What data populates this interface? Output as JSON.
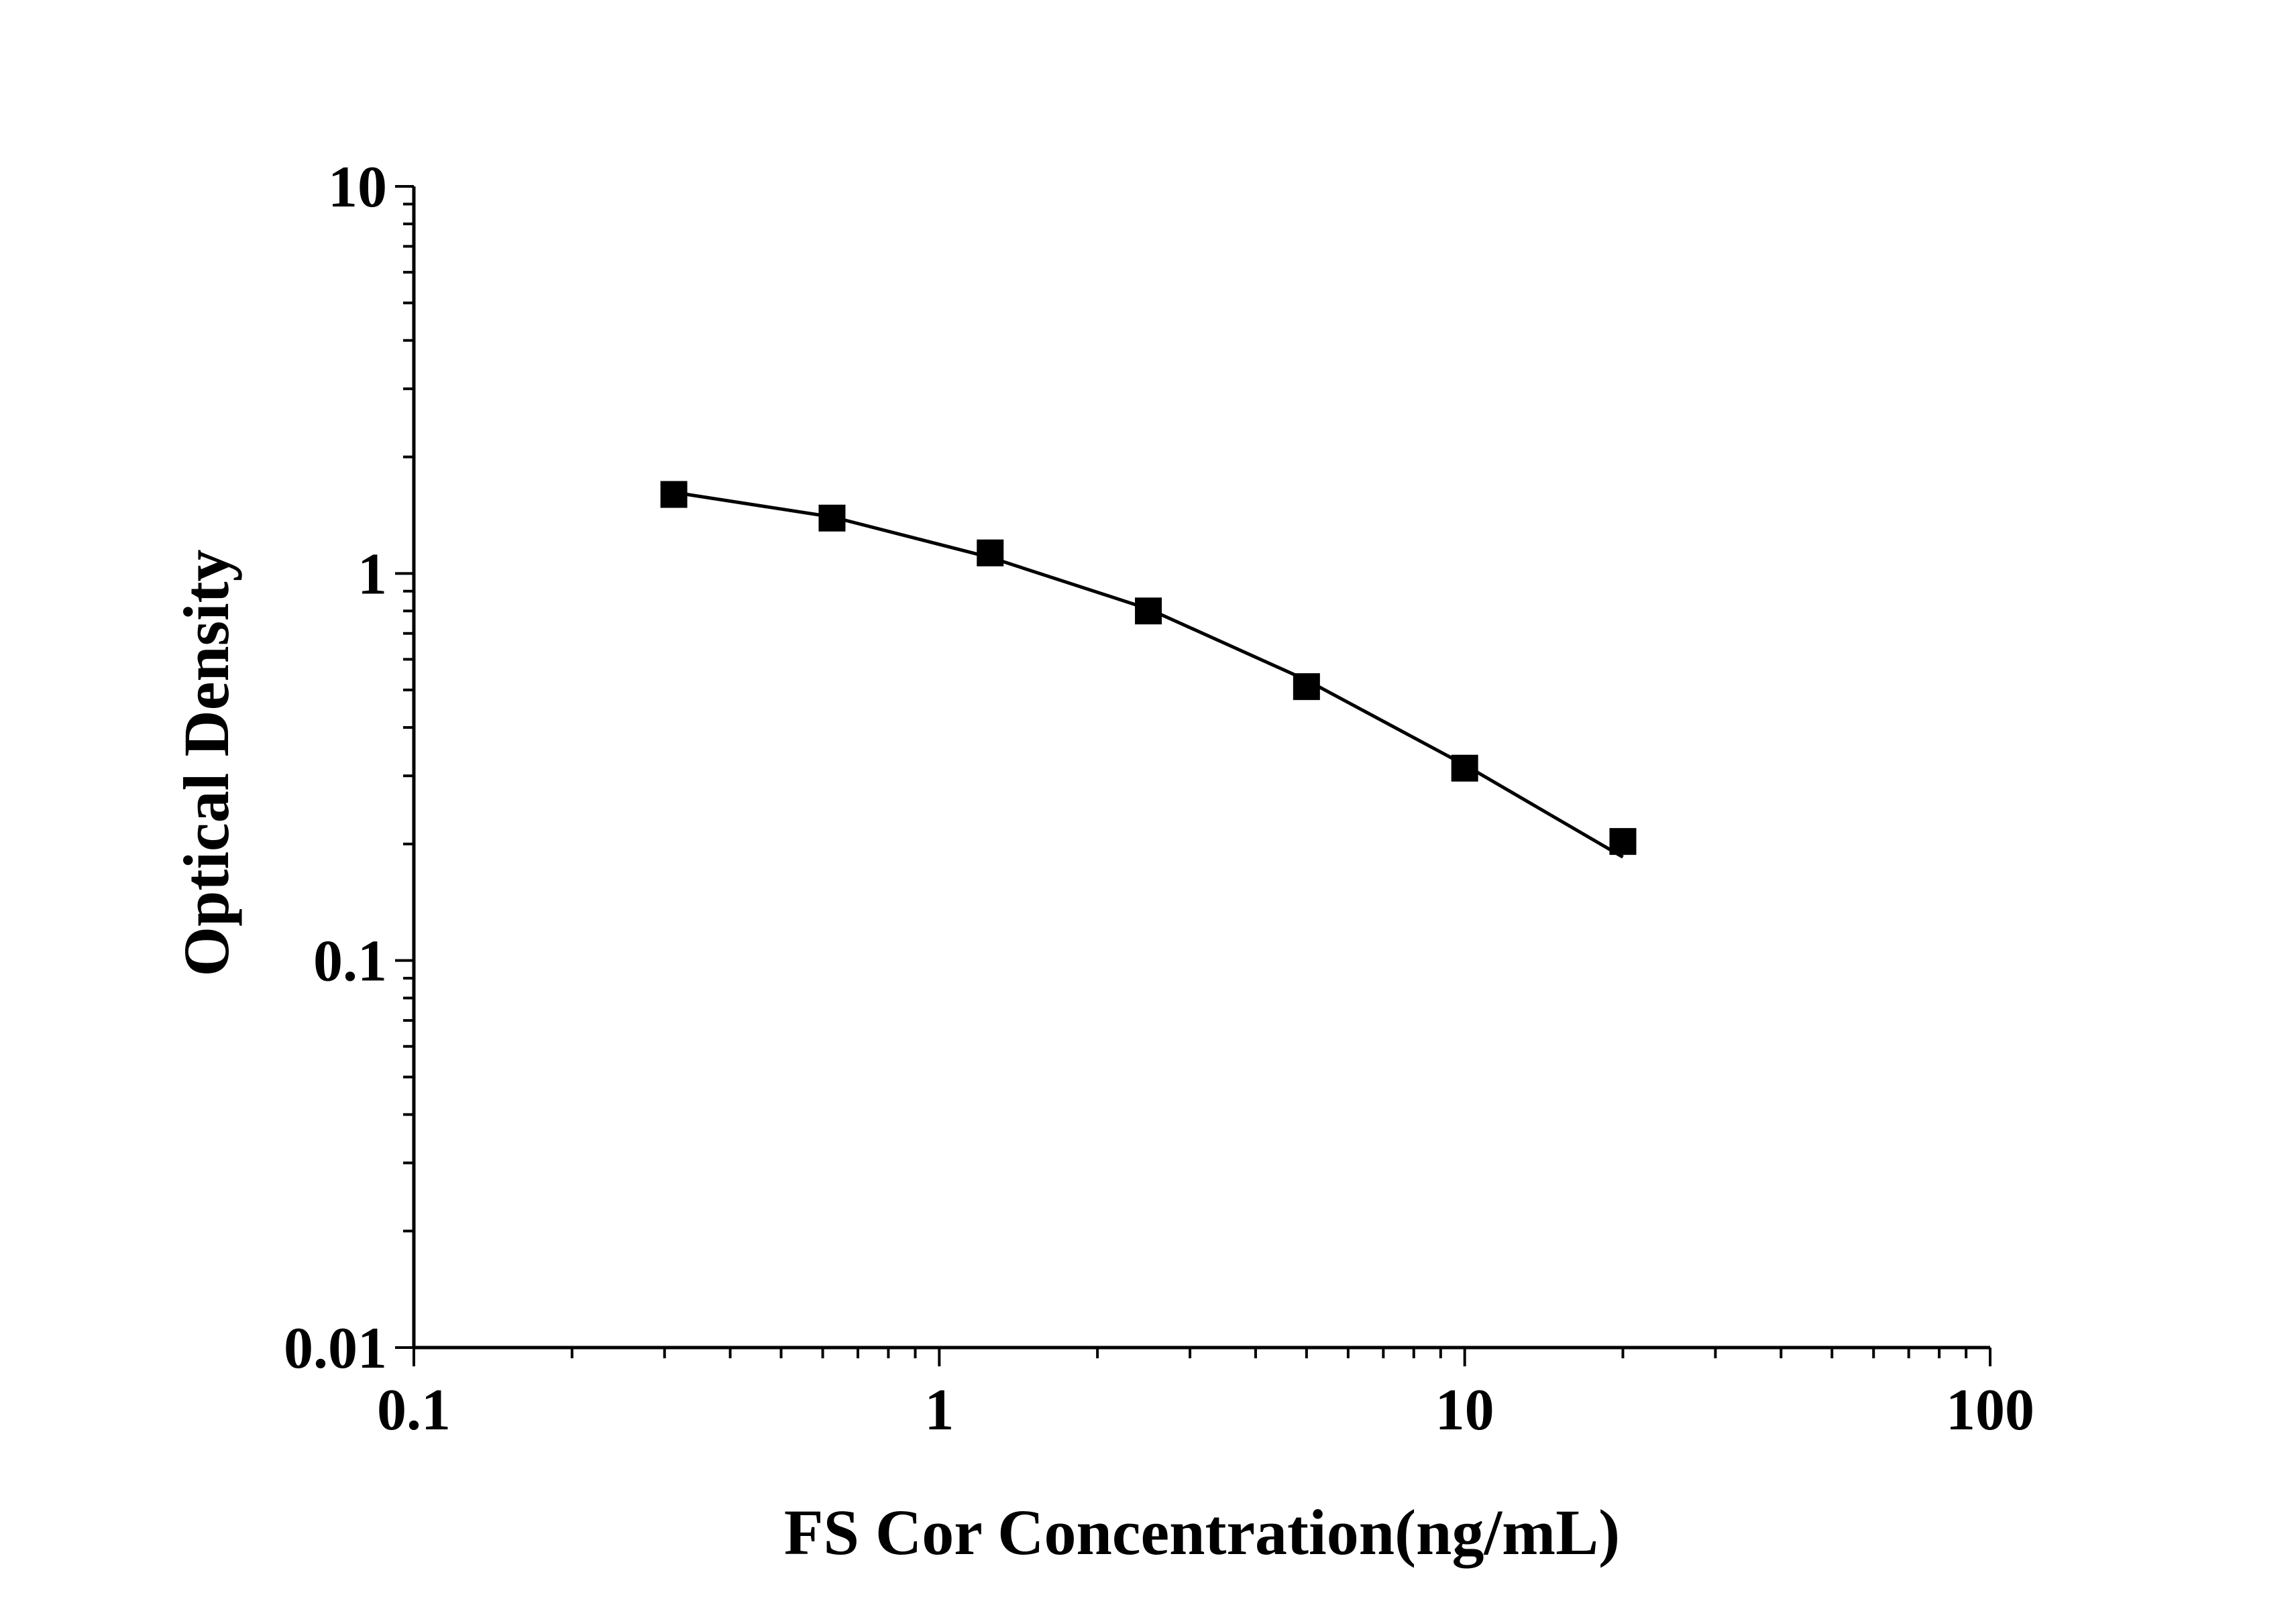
{
  "chart_data": {
    "type": "scatter",
    "title": "",
    "xlabel": "FS Cor Concentration(ng/mL)",
    "ylabel": "Optical Density",
    "x_scale": "log",
    "y_scale": "log",
    "xlim": [
      0.1,
      100
    ],
    "ylim": [
      0.01,
      10
    ],
    "x_ticks": [
      "0.1",
      "1",
      "10",
      "100"
    ],
    "y_ticks": [
      "0.01",
      "0.1",
      "1",
      "10"
    ],
    "grid": false,
    "legend": "none",
    "series": [
      {
        "marker": "square",
        "color": "#000000",
        "x": [
          0.3125,
          0.625,
          1.25,
          2.5,
          5,
          10,
          20
        ],
        "y": [
          1.6,
          1.39,
          1.13,
          0.8,
          0.51,
          0.314,
          0.203
        ]
      }
    ],
    "fit_curve": {
      "color": "#000000",
      "x": [
        0.3125,
        0.625,
        1.25,
        2.5,
        5,
        10,
        20
      ],
      "y": [
        1.62,
        1.4,
        1.1,
        0.81,
        0.53,
        0.32,
        0.185
      ]
    }
  }
}
